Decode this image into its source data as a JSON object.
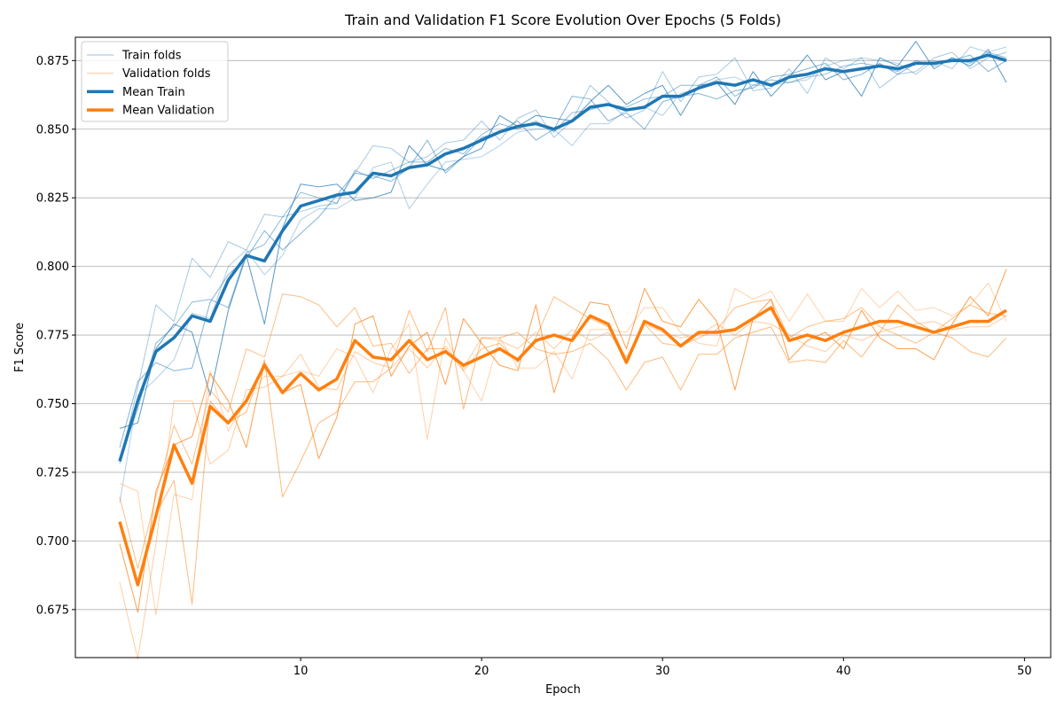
{
  "chart_data": {
    "type": "line",
    "title": "Train and Validation F1 Score Evolution Over Epochs (5 Folds)",
    "xlabel": "Epoch",
    "ylabel": "F1 Score",
    "xlim": [
      -2.45,
      51.45
    ],
    "ylim": [
      0.6575,
      0.8835
    ],
    "xticks": [
      10,
      20,
      30,
      40,
      50
    ],
    "yticks": [
      0.675,
      0.7,
      0.725,
      0.75,
      0.775,
      0.8,
      0.825,
      0.85,
      0.875
    ],
    "grid": "y",
    "legend_position": "top-left",
    "legend": [
      {
        "label": "Train folds",
        "color": "#1f77b4",
        "style": "thin"
      },
      {
        "label": "Validation folds",
        "color": "#ff7f0e",
        "style": "thin"
      },
      {
        "label": "Mean Train",
        "color": "#1f77b4",
        "style": "thick"
      },
      {
        "label": "Mean Validation",
        "color": "#ff7f0e",
        "style": "thick"
      }
    ],
    "x": [
      0,
      1,
      2,
      3,
      4,
      5,
      6,
      7,
      8,
      9,
      10,
      11,
      12,
      13,
      14,
      15,
      16,
      17,
      18,
      19,
      20,
      21,
      22,
      23,
      24,
      25,
      26,
      27,
      28,
      29,
      30,
      31,
      32,
      33,
      34,
      35,
      36,
      37,
      38,
      39,
      40,
      41,
      42,
      43,
      44,
      45,
      46,
      47,
      48,
      49
    ],
    "mean_series": [
      {
        "name": "Mean Train",
        "color": "#1f77b4",
        "values": [
          0.729,
          0.751,
          0.769,
          0.774,
          0.782,
          0.78,
          0.795,
          0.804,
          0.802,
          0.813,
          0.822,
          0.824,
          0.826,
          0.827,
          0.834,
          0.833,
          0.836,
          0.837,
          0.841,
          0.843,
          0.846,
          0.849,
          0.851,
          0.852,
          0.85,
          0.853,
          0.858,
          0.859,
          0.857,
          0.858,
          0.862,
          0.862,
          0.865,
          0.867,
          0.866,
          0.868,
          0.866,
          0.869,
          0.87,
          0.872,
          0.871,
          0.872,
          0.873,
          0.872,
          0.874,
          0.874,
          0.875,
          0.875,
          0.877,
          0.875
        ]
      },
      {
        "name": "Mean Validation",
        "color": "#ff7f0e",
        "values": [
          0.707,
          0.684,
          0.709,
          0.735,
          0.721,
          0.749,
          0.743,
          0.751,
          0.764,
          0.754,
          0.761,
          0.755,
          0.759,
          0.773,
          0.767,
          0.766,
          0.773,
          0.766,
          0.769,
          0.764,
          0.767,
          0.77,
          0.766,
          0.773,
          0.775,
          0.773,
          0.782,
          0.779,
          0.765,
          0.78,
          0.777,
          0.771,
          0.776,
          0.776,
          0.777,
          0.781,
          0.785,
          0.773,
          0.775,
          0.773,
          0.776,
          0.778,
          0.78,
          0.78,
          0.778,
          0.776,
          0.778,
          0.78,
          0.78,
          0.784
        ]
      }
    ],
    "fold_series": [
      {
        "group": "train",
        "color": "#1f77b4",
        "values": [
          0.741,
          0.743,
          0.77,
          0.779,
          0.776,
          0.753,
          0.784,
          0.804,
          0.779,
          0.814,
          0.83,
          0.829,
          0.83,
          0.824,
          0.825,
          0.827,
          0.844,
          0.837,
          0.835,
          0.84,
          0.843,
          0.855,
          0.851,
          0.855,
          0.854,
          0.853,
          0.86,
          0.866,
          0.859,
          0.863,
          0.866,
          0.855,
          0.866,
          0.867,
          0.859,
          0.871,
          0.862,
          0.869,
          0.877,
          0.868,
          0.871,
          0.862,
          0.876,
          0.873,
          0.882,
          0.872,
          0.876,
          0.873,
          0.879,
          0.867
        ]
      },
      {
        "group": "train",
        "color": "#1f77b4",
        "values": [
          0.734,
          0.758,
          0.765,
          0.762,
          0.763,
          0.787,
          0.797,
          0.803,
          0.813,
          0.806,
          0.812,
          0.818,
          0.826,
          0.834,
          0.833,
          0.831,
          0.836,
          0.846,
          0.834,
          0.84,
          0.847,
          0.849,
          0.853,
          0.846,
          0.85,
          0.862,
          0.861,
          0.853,
          0.856,
          0.85,
          0.86,
          0.862,
          0.863,
          0.861,
          0.864,
          0.865,
          0.869,
          0.87,
          0.872,
          0.874,
          0.868,
          0.87,
          0.874,
          0.87,
          0.874,
          0.874,
          0.875,
          0.877,
          0.871,
          0.875
        ]
      },
      {
        "group": "train",
        "color": "#1f77b4",
        "values": [
          0.73,
          0.748,
          0.772,
          0.778,
          0.787,
          0.788,
          0.785,
          0.805,
          0.808,
          0.818,
          0.827,
          0.825,
          0.823,
          0.835,
          0.832,
          0.835,
          0.838,
          0.838,
          0.843,
          0.841,
          0.848,
          0.852,
          0.85,
          0.853,
          0.849,
          0.856,
          0.857,
          0.859,
          0.858,
          0.861,
          0.862,
          0.866,
          0.866,
          0.869,
          0.862,
          0.866,
          0.868,
          0.867,
          0.869,
          0.87,
          0.873,
          0.874,
          0.873,
          0.871,
          0.875,
          0.873,
          0.876,
          0.874,
          0.878,
          0.876
        ]
      },
      {
        "group": "train",
        "color": "#1f77b4",
        "values": [
          0.728,
          0.756,
          0.786,
          0.78,
          0.803,
          0.796,
          0.809,
          0.806,
          0.819,
          0.818,
          0.82,
          0.822,
          0.823,
          0.834,
          0.844,
          0.843,
          0.838,
          0.84,
          0.845,
          0.846,
          0.853,
          0.846,
          0.854,
          0.857,
          0.847,
          0.853,
          0.866,
          0.86,
          0.854,
          0.857,
          0.871,
          0.86,
          0.869,
          0.87,
          0.876,
          0.864,
          0.865,
          0.872,
          0.863,
          0.876,
          0.872,
          0.876,
          0.865,
          0.87,
          0.871,
          0.876,
          0.878,
          0.872,
          0.876,
          0.878
        ]
      },
      {
        "group": "train",
        "color": "#1f77b4",
        "values": [
          0.714,
          0.753,
          0.759,
          0.766,
          0.783,
          0.781,
          0.8,
          0.806,
          0.797,
          0.804,
          0.817,
          0.821,
          0.821,
          0.825,
          0.836,
          0.838,
          0.821,
          0.83,
          0.838,
          0.839,
          0.84,
          0.844,
          0.849,
          0.85,
          0.85,
          0.844,
          0.852,
          0.852,
          0.857,
          0.858,
          0.855,
          0.863,
          0.865,
          0.868,
          0.869,
          0.866,
          0.866,
          0.867,
          0.868,
          0.873,
          0.875,
          0.876,
          0.875,
          0.874,
          0.87,
          0.875,
          0.872,
          0.88,
          0.878,
          0.88
        ]
      },
      {
        "group": "val",
        "color": "#ff7f0e",
        "values": [
          0.699,
          0.674,
          0.718,
          0.735,
          0.738,
          0.761,
          0.751,
          0.734,
          0.765,
          0.754,
          0.757,
          0.73,
          0.745,
          0.779,
          0.782,
          0.76,
          0.771,
          0.776,
          0.757,
          0.781,
          0.772,
          0.764,
          0.762,
          0.786,
          0.754,
          0.774,
          0.787,
          0.786,
          0.77,
          0.792,
          0.78,
          0.778,
          0.788,
          0.78,
          0.755,
          0.781,
          0.788,
          0.766,
          0.773,
          0.776,
          0.77,
          0.784,
          0.774,
          0.77,
          0.77,
          0.766,
          0.779,
          0.789,
          0.782,
          0.799
        ]
      },
      {
        "group": "val",
        "color": "#ff7f0e",
        "values": [
          0.707,
          0.685,
          0.71,
          0.722,
          0.677,
          0.751,
          0.743,
          0.747,
          0.766,
          0.716,
          0.729,
          0.743,
          0.747,
          0.758,
          0.758,
          0.763,
          0.784,
          0.769,
          0.785,
          0.748,
          0.774,
          0.774,
          0.776,
          0.77,
          0.768,
          0.769,
          0.772,
          0.766,
          0.755,
          0.765,
          0.767,
          0.755,
          0.768,
          0.768,
          0.774,
          0.776,
          0.778,
          0.765,
          0.766,
          0.765,
          0.773,
          0.767,
          0.776,
          0.786,
          0.78,
          0.776,
          0.774,
          0.769,
          0.767,
          0.774
        ]
      },
      {
        "group": "val",
        "color": "#ff7f0e",
        "values": [
          0.716,
          0.69,
          0.716,
          0.742,
          0.728,
          0.755,
          0.747,
          0.77,
          0.767,
          0.79,
          0.789,
          0.786,
          0.778,
          0.785,
          0.771,
          0.772,
          0.761,
          0.77,
          0.77,
          0.762,
          0.77,
          0.772,
          0.765,
          0.774,
          0.789,
          0.785,
          0.781,
          0.778,
          0.765,
          0.779,
          0.772,
          0.771,
          0.774,
          0.777,
          0.785,
          0.787,
          0.788,
          0.774,
          0.778,
          0.78,
          0.781,
          0.785,
          0.778,
          0.775,
          0.772,
          0.776,
          0.781,
          0.786,
          0.783,
          0.782
        ]
      },
      {
        "group": "val",
        "color": "#ff7f0e",
        "values": [
          0.685,
          0.657,
          0.699,
          0.751,
          0.751,
          0.728,
          0.733,
          0.755,
          0.756,
          0.76,
          0.768,
          0.756,
          0.755,
          0.769,
          0.765,
          0.763,
          0.77,
          0.763,
          0.771,
          0.763,
          0.774,
          0.773,
          0.77,
          0.776,
          0.77,
          0.777,
          0.773,
          0.776,
          0.767,
          0.779,
          0.776,
          0.774,
          0.775,
          0.779,
          0.775,
          0.78,
          0.779,
          0.775,
          0.771,
          0.769,
          0.775,
          0.773,
          0.776,
          0.778,
          0.779,
          0.78,
          0.777,
          0.778,
          0.778,
          0.782
        ]
      },
      {
        "group": "val",
        "color": "#ff7f0e",
        "values": [
          0.721,
          0.718,
          0.673,
          0.717,
          0.715,
          0.762,
          0.74,
          0.752,
          0.76,
          0.76,
          0.762,
          0.76,
          0.77,
          0.767,
          0.754,
          0.77,
          0.779,
          0.737,
          0.774,
          0.762,
          0.751,
          0.774,
          0.763,
          0.763,
          0.769,
          0.759,
          0.777,
          0.777,
          0.776,
          0.785,
          0.785,
          0.776,
          0.772,
          0.771,
          0.792,
          0.788,
          0.791,
          0.78,
          0.79,
          0.78,
          0.78,
          0.792,
          0.785,
          0.791,
          0.784,
          0.785,
          0.782,
          0.786,
          0.794,
          0.78
        ]
      }
    ]
  }
}
